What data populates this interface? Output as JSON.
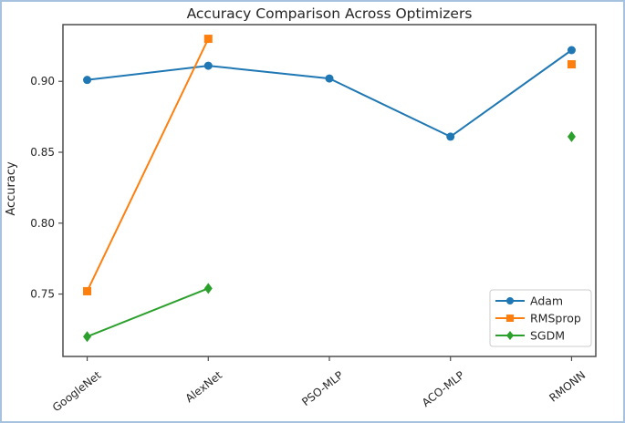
{
  "figure": {
    "background": "#ffffff",
    "border_color": "#a7c2de"
  },
  "chart_data": {
    "type": "line",
    "title": "Accuracy Comparison Across Optimizers",
    "xlabel": "",
    "ylabel": "Accuracy",
    "categories": [
      "GoogleNet",
      "AlexNet",
      "PSO-MLP",
      "ACO-MLP",
      "RMONN"
    ],
    "series": [
      {
        "name": "Adam",
        "color": "#1f77b4",
        "marker": "circle",
        "values": [
          0.901,
          0.911,
          0.902,
          0.861,
          0.922
        ]
      },
      {
        "name": "RMSprop",
        "color": "#ff7f0e",
        "marker": "square",
        "values": [
          0.752,
          0.93,
          null,
          null,
          0.912
        ]
      },
      {
        "name": "SGDM",
        "color": "#2ca02c",
        "marker": "diamond",
        "values": [
          0.72,
          0.754,
          null,
          null,
          0.861
        ]
      }
    ],
    "yticks": [
      0.75,
      0.8,
      0.85,
      0.9
    ],
    "ylim": [
      0.706,
      0.94
    ],
    "grid": false,
    "x_tick_rotation": 38,
    "legend": {
      "position": "lower right",
      "entries": [
        "Adam",
        "RMSprop",
        "SGDM"
      ]
    },
    "axis_color": "#4d4d4d",
    "text_color": "#262626"
  }
}
